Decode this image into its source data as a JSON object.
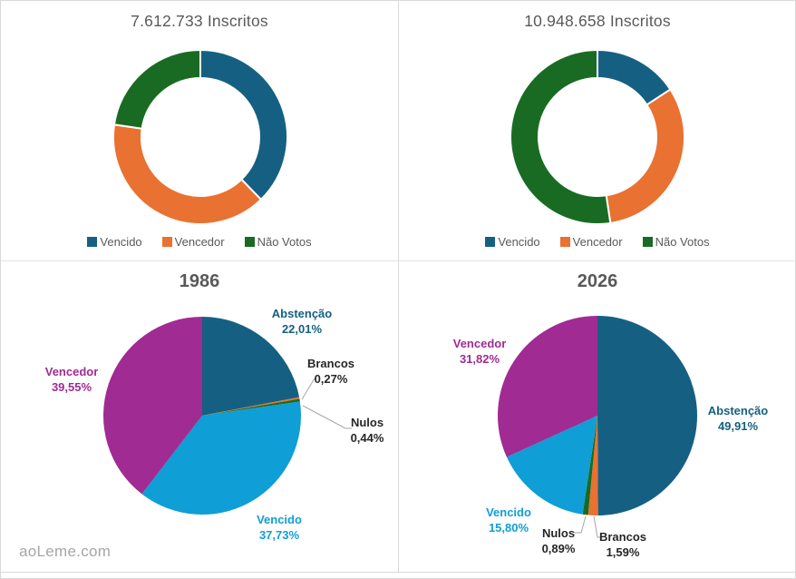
{
  "page": {
    "watermark": "aoLeme.com"
  },
  "theme": {
    "background": "#FFFFFF",
    "panel_border": "#D9D9D9",
    "title_color": "#595959",
    "dark_label_color": "#262626",
    "leader_line_color": "#A6A6A6",
    "watermark_color": "#A6A6A6",
    "accent_blue": "#156082",
    "accent_orange": "#E97132",
    "accent_green": "#196B24",
    "accent_lightblue": "#0F9ED5",
    "accent_purple": "#A02B93"
  },
  "chart_data": [
    {
      "id": "donut-1986",
      "type": "pie",
      "subtype": "donut",
      "title": "7.612.733 Inscritos",
      "legend_position": "bottom",
      "series": [
        {
          "label": "Vencido",
          "value": 37.73,
          "color": "#156082"
        },
        {
          "label": "Vencedor",
          "value": 39.55,
          "color": "#E97132"
        },
        {
          "label": "Não Votos",
          "value": 22.72,
          "color": "#196B24"
        }
      ]
    },
    {
      "id": "donut-2026",
      "type": "pie",
      "subtype": "donut",
      "title": "10.948.658 Inscritos",
      "legend_position": "bottom",
      "series": [
        {
          "label": "Vencido",
          "value": 15.8,
          "color": "#156082"
        },
        {
          "label": "Vencedor",
          "value": 31.82,
          "color": "#E97132"
        },
        {
          "label": "Não Votos",
          "value": 52.38,
          "color": "#196B24"
        }
      ]
    },
    {
      "id": "pie-1986",
      "type": "pie",
      "title": "1986",
      "series": [
        {
          "label": "Abstenção",
          "value": 22.01,
          "value_label": "22,01%",
          "color": "#156082",
          "label_color": "#156082"
        },
        {
          "label": "Brancos",
          "value": 0.27,
          "value_label": "0,27%",
          "color": "#E97132",
          "label_color": "#262626"
        },
        {
          "label": "Nulos",
          "value": 0.44,
          "value_label": "0,44%",
          "color": "#196B24",
          "label_color": "#262626"
        },
        {
          "label": "Vencido",
          "value": 37.73,
          "value_label": "37,73%",
          "color": "#0F9ED5",
          "label_color": "#0F9ED5"
        },
        {
          "label": "Vencedor",
          "value": 39.55,
          "value_label": "39,55%",
          "color": "#A02B93",
          "label_color": "#A02B93"
        }
      ]
    },
    {
      "id": "pie-2026",
      "type": "pie",
      "title": "2026",
      "series": [
        {
          "label": "Abstenção",
          "value": 49.91,
          "value_label": "49,91%",
          "color": "#156082",
          "label_color": "#156082"
        },
        {
          "label": "Brancos",
          "value": 1.59,
          "value_label": "1,59%",
          "color": "#E97132",
          "label_color": "#262626"
        },
        {
          "label": "Nulos",
          "value": 0.89,
          "value_label": "0,89%",
          "color": "#196B24",
          "label_color": "#262626"
        },
        {
          "label": "Vencido",
          "value": 15.8,
          "value_label": "15,80%",
          "color": "#0F9ED5",
          "label_color": "#0F9ED5"
        },
        {
          "label": "Vencedor",
          "value": 31.82,
          "value_label": "31,82%",
          "color": "#A02B93",
          "label_color": "#A02B93"
        }
      ]
    }
  ]
}
